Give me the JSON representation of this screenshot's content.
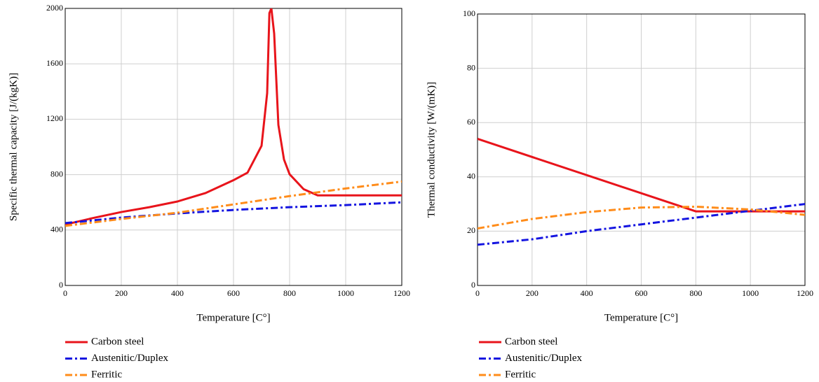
{
  "chart_data": [
    {
      "type": "line",
      "x_label": "Temperature [C°]",
      "y_label": "Specific thermal capacity [J/(kgK)]",
      "xlim": [
        0,
        1200
      ],
      "xticks": [
        0,
        200,
        400,
        600,
        800,
        1000,
        1200
      ],
      "ylim": [
        0,
        2000
      ],
      "yticks": [
        0,
        400,
        800,
        1200,
        1600,
        2000
      ],
      "grid": true,
      "series": [
        {
          "name": "Carbon steel",
          "color": "#e8141b",
          "style": "solid",
          "x": [
            0,
            100,
            200,
            300,
            400,
            500,
            600,
            650,
            700,
            720,
            728,
            735,
            745,
            760,
            780,
            800,
            850,
            900,
            1000,
            1100,
            1200
          ],
          "values": [
            440,
            487,
            530,
            565,
            606,
            667,
            760,
            814,
            1008,
            1388,
            1966,
            2000,
            1818,
            1159,
            909,
            803,
            695,
            650,
            650,
            650,
            650
          ]
        },
        {
          "name": "Austenitic/Duplex",
          "color": "#1414e0",
          "style": "dashdot",
          "x": [
            0,
            200,
            400,
            600,
            800,
            1000,
            1200
          ],
          "values": [
            450,
            490,
            520,
            545,
            565,
            580,
            600
          ]
        },
        {
          "name": "Ferritic",
          "color": "#ff8c1a",
          "style": "dashdot",
          "x": [
            0,
            200,
            400,
            600,
            800,
            1000,
            1200
          ],
          "values": [
            430,
            480,
            525,
            585,
            645,
            700,
            750
          ]
        }
      ]
    },
    {
      "type": "line",
      "x_label": "Temperature [C°]",
      "y_label": "Thermal conductivity [W/(mK)]",
      "xlim": [
        0,
        1200
      ],
      "xticks": [
        0,
        200,
        400,
        600,
        800,
        1000,
        1200
      ],
      "ylim": [
        0,
        100
      ],
      "yticks": [
        0,
        20,
        40,
        60,
        80,
        100
      ],
      "grid": true,
      "series": [
        {
          "name": "Carbon steel",
          "color": "#e8141b",
          "style": "solid",
          "x": [
            0,
            800,
            1200
          ],
          "values": [
            54,
            27.3,
            27.3
          ]
        },
        {
          "name": "Austenitic/Duplex",
          "color": "#1414e0",
          "style": "dashdot",
          "x": [
            0,
            200,
            400,
            600,
            800,
            1000,
            1200
          ],
          "values": [
            15,
            17,
            20,
            22.5,
            25,
            27.5,
            30
          ]
        },
        {
          "name": "Ferritic",
          "color": "#ff8c1a",
          "style": "dashdot",
          "x": [
            0,
            200,
            400,
            600,
            800,
            1000,
            1200
          ],
          "values": [
            21,
            24.5,
            27,
            28.7,
            29,
            28,
            26
          ]
        }
      ]
    }
  ]
}
